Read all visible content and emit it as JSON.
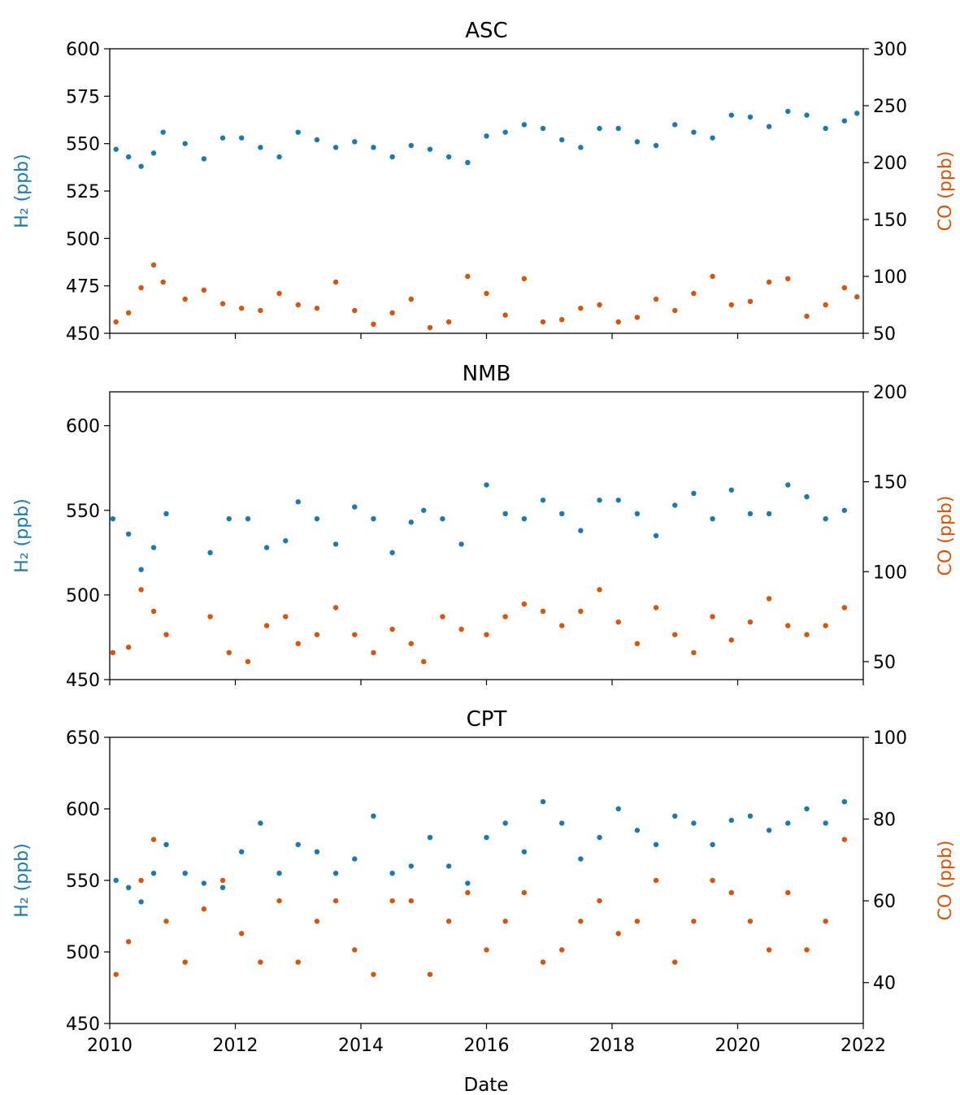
{
  "figure": {
    "xlabel": "Date",
    "x_ticks": [
      "2010",
      "2012",
      "2014",
      "2016",
      "2018",
      "2020",
      "2022"
    ],
    "colors": {
      "h2": "#1a7ab0",
      "co": "#d9540a"
    }
  },
  "chart_data": [
    {
      "type": "scatter",
      "title": "ASC",
      "xlabel": "Date",
      "ylabel": "H₂ (ppb)",
      "y2label": "CO (ppb)",
      "xlim": [
        2010,
        2022
      ],
      "ylim": [
        450,
        600
      ],
      "y2lim": [
        50,
        300
      ],
      "y_ticks": [
        "450",
        "475",
        "500",
        "525",
        "550",
        "575",
        "600"
      ],
      "y2_ticks": [
        "50",
        "100",
        "150",
        "200",
        "250",
        "300"
      ],
      "grid": false,
      "legend": "none",
      "series": [
        {
          "axis": "left",
          "color": "#1a7ab0",
          "x": [
            2010.1,
            2010.3,
            2010.5,
            2010.7,
            2010.85,
            2011.2,
            2011.5,
            2011.8,
            2012.1,
            2012.4,
            2012.7,
            2013.0,
            2013.3,
            2013.6,
            2013.9,
            2014.2,
            2014.5,
            2014.8,
            2015.1,
            2015.4,
            2015.7,
            2016.0,
            2016.3,
            2016.6,
            2016.9,
            2017.2,
            2017.5,
            2017.8,
            2018.1,
            2018.4,
            2018.7,
            2019.0,
            2019.3,
            2019.6,
            2019.9,
            2020.2,
            2020.5,
            2020.8,
            2021.1,
            2021.4,
            2021.7,
            2021.9
          ],
          "y": [
            547,
            543,
            538,
            545,
            556,
            550,
            542,
            553,
            553,
            548,
            543,
            556,
            552,
            548,
            551,
            548,
            543,
            549,
            547,
            543,
            540,
            554,
            556,
            560,
            558,
            552,
            548,
            558,
            558,
            551,
            549,
            560,
            556,
            553,
            565,
            564,
            559,
            567,
            565,
            558,
            562,
            566
          ]
        },
        {
          "axis": "right",
          "color": "#d9540a",
          "x": [
            2010.1,
            2010.3,
            2010.5,
            2010.7,
            2010.85,
            2011.2,
            2011.5,
            2011.8,
            2012.1,
            2012.4,
            2012.7,
            2013.0,
            2013.3,
            2013.6,
            2013.9,
            2014.2,
            2014.5,
            2014.8,
            2015.1,
            2015.4,
            2015.7,
            2016.0,
            2016.3,
            2016.6,
            2016.9,
            2017.2,
            2017.5,
            2017.8,
            2018.1,
            2018.4,
            2018.7,
            2019.0,
            2019.3,
            2019.6,
            2019.9,
            2020.2,
            2020.5,
            2020.8,
            2021.1,
            2021.4,
            2021.7,
            2021.9
          ],
          "y": [
            60,
            68,
            90,
            110,
            95,
            80,
            88,
            76,
            72,
            70,
            85,
            75,
            72,
            95,
            70,
            58,
            68,
            80,
            55,
            60,
            100,
            85,
            66,
            98,
            60,
            62,
            72,
            75,
            60,
            64,
            80,
            70,
            85,
            100,
            75,
            78,
            95,
            98,
            65,
            75,
            90,
            82
          ]
        }
      ]
    },
    {
      "type": "scatter",
      "title": "NMB",
      "xlabel": "Date",
      "ylabel": "H₂ (ppb)",
      "y2label": "CO (ppb)",
      "xlim": [
        2010,
        2022
      ],
      "ylim": [
        450,
        620
      ],
      "y2lim": [
        40,
        200
      ],
      "y_ticks": [
        "450",
        "500",
        "550",
        "600"
      ],
      "y2_ticks": [
        "50",
        "100",
        "150",
        "200"
      ],
      "grid": false,
      "legend": "none",
      "series": [
        {
          "axis": "left",
          "color": "#1a7ab0",
          "x": [
            2010.05,
            2010.3,
            2010.5,
            2010.7,
            2010.9,
            2011.6,
            2011.9,
            2012.2,
            2012.5,
            2012.8,
            2013.0,
            2013.3,
            2013.6,
            2013.9,
            2014.2,
            2014.5,
            2014.8,
            2015.0,
            2015.3,
            2015.6,
            2016.0,
            2016.3,
            2016.6,
            2016.9,
            2017.2,
            2017.5,
            2017.8,
            2018.1,
            2018.4,
            2018.7,
            2019.0,
            2019.3,
            2019.6,
            2019.9,
            2020.2,
            2020.5,
            2020.8,
            2021.1,
            2021.4,
            2021.7
          ],
          "y": [
            545,
            536,
            515,
            528,
            548,
            525,
            545,
            545,
            528,
            532,
            555,
            545,
            530,
            552,
            545,
            525,
            543,
            550,
            545,
            530,
            565,
            548,
            545,
            556,
            548,
            538,
            556,
            556,
            548,
            535,
            553,
            560,
            545,
            562,
            548,
            548,
            565,
            558,
            545,
            550
          ]
        },
        {
          "axis": "right",
          "color": "#d9540a",
          "x": [
            2010.05,
            2010.3,
            2010.5,
            2010.7,
            2010.9,
            2011.6,
            2011.9,
            2012.2,
            2012.5,
            2012.8,
            2013.0,
            2013.3,
            2013.6,
            2013.9,
            2014.2,
            2014.5,
            2014.8,
            2015.0,
            2015.3,
            2015.6,
            2016.0,
            2016.3,
            2016.6,
            2016.9,
            2017.2,
            2017.5,
            2017.8,
            2018.1,
            2018.4,
            2018.7,
            2019.0,
            2019.3,
            2019.6,
            2019.9,
            2020.2,
            2020.5,
            2020.8,
            2021.1,
            2021.4,
            2021.7
          ],
          "y": [
            55,
            58,
            90,
            78,
            65,
            75,
            55,
            50,
            70,
            75,
            60,
            65,
            80,
            65,
            55,
            68,
            60,
            50,
            75,
            68,
            65,
            75,
            82,
            78,
            70,
            78,
            90,
            72,
            60,
            80,
            65,
            55,
            75,
            62,
            72,
            85,
            70,
            65,
            70,
            80
          ]
        }
      ]
    },
    {
      "type": "scatter",
      "title": "CPT",
      "xlabel": "Date",
      "ylabel": "H₂ (ppb)",
      "y2label": "CO (ppb)",
      "xlim": [
        2010,
        2022
      ],
      "ylim": [
        450,
        650
      ],
      "y2lim": [
        30,
        100
      ],
      "y_ticks": [
        "450",
        "500",
        "550",
        "600",
        "650"
      ],
      "y2_ticks": [
        "40",
        "60",
        "80",
        "100"
      ],
      "grid": false,
      "legend": "none",
      "series": [
        {
          "axis": "left",
          "color": "#1a7ab0",
          "x": [
            2010.1,
            2010.3,
            2010.5,
            2010.7,
            2010.9,
            2011.2,
            2011.5,
            2011.8,
            2012.1,
            2012.4,
            2012.7,
            2013.0,
            2013.3,
            2013.6,
            2013.9,
            2014.2,
            2014.5,
            2014.8,
            2015.1,
            2015.4,
            2015.7,
            2016.0,
            2016.3,
            2016.6,
            2016.9,
            2017.2,
            2017.5,
            2017.8,
            2018.1,
            2018.4,
            2018.7,
            2019.0,
            2019.3,
            2019.6,
            2019.9,
            2020.2,
            2020.5,
            2020.8,
            2021.1,
            2021.4,
            2021.7
          ],
          "y": [
            550,
            545,
            535,
            555,
            575,
            555,
            548,
            545,
            570,
            590,
            555,
            575,
            570,
            555,
            565,
            595,
            555,
            560,
            580,
            560,
            548,
            580,
            590,
            570,
            605,
            590,
            565,
            580,
            600,
            585,
            575,
            595,
            590,
            575,
            592,
            595,
            585,
            590,
            600,
            590,
            605
          ]
        },
        {
          "axis": "right",
          "color": "#d9540a",
          "x": [
            2010.1,
            2010.3,
            2010.5,
            2010.7,
            2010.9,
            2011.2,
            2011.5,
            2011.8,
            2012.1,
            2012.4,
            2012.7,
            2013.0,
            2013.3,
            2013.6,
            2013.9,
            2014.2,
            2014.5,
            2014.8,
            2015.1,
            2015.4,
            2015.7,
            2016.0,
            2016.3,
            2016.6,
            2016.9,
            2017.2,
            2017.5,
            2017.8,
            2018.1,
            2018.4,
            2018.7,
            2019.0,
            2019.3,
            2019.6,
            2019.9,
            2020.2,
            2020.5,
            2020.8,
            2021.1,
            2021.4,
            2021.7
          ],
          "y": [
            42,
            50,
            65,
            75,
            55,
            45,
            58,
            65,
            52,
            45,
            60,
            45,
            55,
            60,
            48,
            42,
            60,
            60,
            42,
            55,
            62,
            48,
            55,
            62,
            45,
            48,
            55,
            60,
            52,
            55,
            65,
            45,
            55,
            65,
            62,
            55,
            48,
            62,
            48,
            55,
            75
          ]
        }
      ]
    }
  ]
}
